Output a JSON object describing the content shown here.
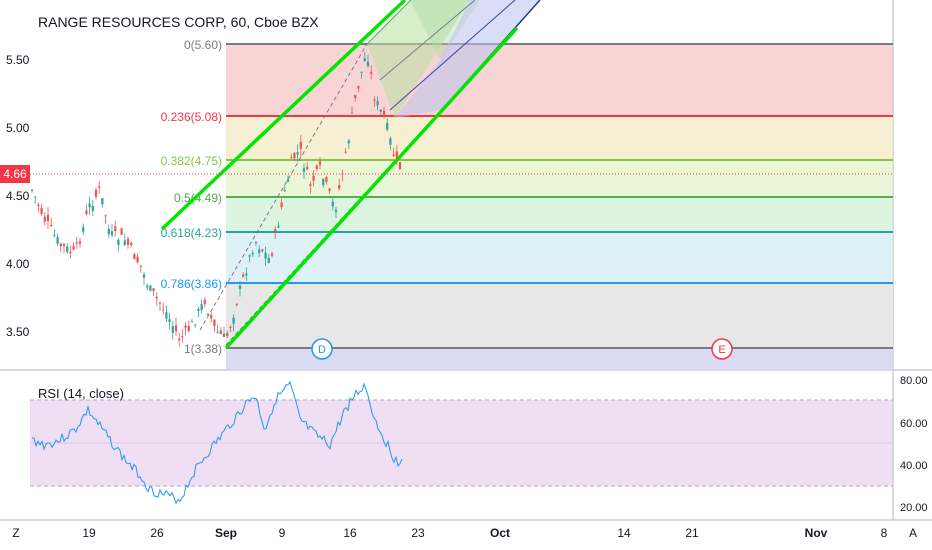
{
  "header": {
    "symbol": "RANGE RESOURCES CORP, 60, Cboe BZX"
  },
  "price_axis": {
    "ticks": [
      "5.50",
      "5.00",
      "4.50",
      "4.00",
      "3.50"
    ],
    "current_price": "4.66",
    "current_price_color": "#f23645"
  },
  "fib": {
    "levels": [
      {
        "label": "0(5.60)",
        "color": "#787b86"
      },
      {
        "label": "0.236(5.08)",
        "color": "#f23645"
      },
      {
        "label": "0.382(4.75)",
        "color": "#8bc34a"
      },
      {
        "label": "0.5(4.49)",
        "color": "#4caf50"
      },
      {
        "label": "0.618(4.23)",
        "color": "#26a69a"
      },
      {
        "label": "0.786(3.86)",
        "color": "#2196f3"
      },
      {
        "label": "1(3.38)",
        "color": "#787b86"
      }
    ]
  },
  "event_markers": [
    {
      "label": "D",
      "color": "#2196f3"
    },
    {
      "label": "E",
      "color": "#f23645"
    }
  ],
  "rsi": {
    "title": "RSI (14, close)",
    "ticks": [
      "80.00",
      "60.00",
      "40.00",
      "20.00"
    ],
    "line_color": "#2196f3",
    "band_color": "#e1bee7"
  },
  "time_axis": {
    "labels": [
      "19",
      "26",
      "Sep",
      "9",
      "16",
      "23",
      "Oct",
      "14",
      "21",
      "Nov",
      "8"
    ]
  },
  "corner_buttons": {
    "left": "Z",
    "right": "A"
  },
  "colors": {
    "channel_green": "#00e600",
    "candle_up": "#26a69a",
    "candle_down": "#ef5350"
  }
}
